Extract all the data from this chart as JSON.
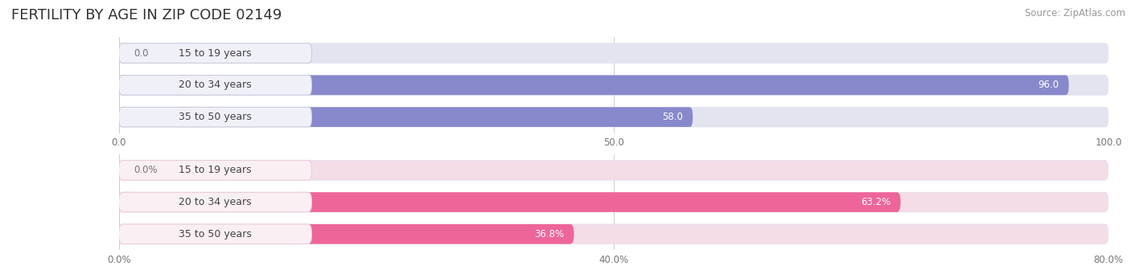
{
  "title": "FERTILITY BY AGE IN ZIP CODE 02149",
  "source": "Source: ZipAtlas.com",
  "top_chart": {
    "categories": [
      "15 to 19 years",
      "20 to 34 years",
      "35 to 50 years"
    ],
    "values": [
      0.0,
      96.0,
      58.0
    ],
    "xlim": [
      0,
      100
    ],
    "xticks": [
      0.0,
      50.0,
      100.0
    ],
    "xtick_labels": [
      "0.0",
      "50.0",
      "100.0"
    ],
    "bar_color": "#8888cc",
    "bar_bg_color": "#e4e4f0",
    "pill_bg": "#f0f0f8",
    "pill_outline": "#ccccdd"
  },
  "bottom_chart": {
    "categories": [
      "15 to 19 years",
      "20 to 34 years",
      "35 to 50 years"
    ],
    "values": [
      0.0,
      63.2,
      36.8
    ],
    "xlim": [
      0,
      80
    ],
    "xticks": [
      0.0,
      40.0,
      80.0
    ],
    "xtick_labels": [
      "0.0%",
      "40.0%",
      "80.0%"
    ],
    "bar_color": "#ee6699",
    "bar_bg_color": "#f5dde8",
    "pill_bg": "#faf0f4",
    "pill_outline": "#eeccdd"
  },
  "title_fontsize": 13,
  "source_fontsize": 8.5,
  "label_fontsize": 8.5,
  "tick_fontsize": 8.5,
  "cat_fontsize": 9,
  "background_color": "#ffffff",
  "fig_width": 14.06,
  "fig_height": 3.31
}
